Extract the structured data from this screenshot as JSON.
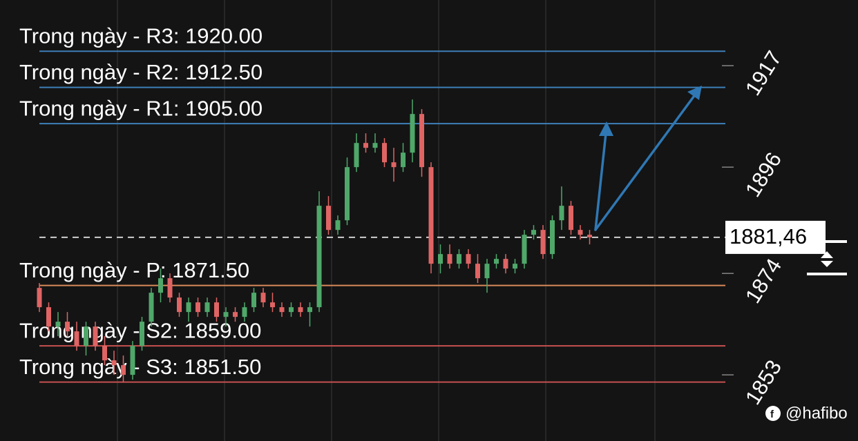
{
  "chart_data": {
    "type": "candlestick",
    "ylim": [
      1839.3,
      1930.6
    ],
    "yticks": [
      1853,
      1874,
      1896,
      1917
    ],
    "up_color": "#4fa86a",
    "down_color": "#e06464",
    "open": [
      1871,
      1867,
      1863,
      1864,
      1862,
      1859,
      1863,
      1859,
      1856,
      1855,
      1853,
      1859,
      1864,
      1870,
      1873,
      1869,
      1866,
      1868,
      1866,
      1868,
      1865,
      1866,
      1865,
      1867,
      1870,
      1868,
      1867,
      1866,
      1867,
      1866,
      1867,
      1888,
      1883,
      1885,
      1896,
      1901,
      1900,
      1901,
      1897,
      1896,
      1899,
      1907,
      1896,
      1876,
      1878,
      1876,
      1878,
      1876,
      1873,
      1876,
      1877,
      1875,
      1876,
      1882,
      1883,
      1878,
      1885,
      1888,
      1883,
      1882
    ],
    "high": [
      1872,
      1868,
      1866,
      1866,
      1864,
      1864,
      1864,
      1861,
      1858,
      1857,
      1860,
      1865,
      1871,
      1875,
      1874,
      1870,
      1869,
      1869,
      1869,
      1869,
      1867,
      1867,
      1868,
      1871,
      1871,
      1870,
      1868,
      1868,
      1868,
      1868,
      1891,
      1890,
      1886,
      1898,
      1903,
      1903,
      1903,
      1902,
      1900,
      1901,
      1910,
      1908,
      1897,
      1880,
      1880,
      1879,
      1879,
      1878,
      1877,
      1878,
      1878,
      1877,
      1883,
      1884,
      1884,
      1886,
      1892,
      1889,
      1884,
      1883
    ],
    "low": [
      1866,
      1862,
      1861,
      1861,
      1858,
      1857,
      1858,
      1855,
      1853,
      1851.5,
      1852,
      1858,
      1863,
      1868,
      1868,
      1865,
      1864,
      1865,
      1865,
      1864,
      1863,
      1864,
      1864,
      1866,
      1867,
      1866,
      1865,
      1865,
      1865,
      1863,
      1866,
      1882,
      1882,
      1884,
      1895,
      1899,
      1899,
      1896,
      1893,
      1895,
      1897,
      1894,
      1874,
      1874,
      1875,
      1875,
      1875,
      1872,
      1870,
      1875,
      1874,
      1874,
      1875,
      1881,
      1877,
      1877,
      1883,
      1882,
      1881,
      1880
    ],
    "close": [
      1867,
      1863,
      1864,
      1862,
      1859,
      1863,
      1859,
      1856,
      1855,
      1853,
      1859,
      1864,
      1870,
      1873,
      1869,
      1866,
      1868,
      1866,
      1868,
      1865,
      1866,
      1865,
      1867,
      1870,
      1868,
      1867,
      1866,
      1867,
      1866,
      1867,
      1888,
      1883,
      1885,
      1896,
      1901,
      1900,
      1901,
      1897,
      1896,
      1899,
      1907,
      1896,
      1876,
      1878,
      1876,
      1878,
      1876,
      1873,
      1876,
      1877,
      1875,
      1876,
      1882,
      1883,
      1878,
      1885,
      1888,
      1883,
      1882,
      1881.46
    ],
    "levels": [
      {
        "label": "Trong ngày - R3: 1920.00",
        "value": 1920,
        "color": "#3d7fb8"
      },
      {
        "label": "Trong ngày - R2: 1912.50",
        "value": 1912.5,
        "color": "#3d7fb8"
      },
      {
        "label": "Trong ngày - R1: 1905.00",
        "value": 1905,
        "color": "#3d7fb8"
      },
      {
        "label": "Trong ngày - P: 1871.50",
        "value": 1871.5,
        "color": "#d9895a"
      },
      {
        "label": "Trong ngày - S2: 1859.00",
        "value": 1859,
        "color": "#c85050"
      },
      {
        "label": "Trong ngày - S3: 1851.50",
        "value": 1851.5,
        "color": "#c85050"
      }
    ],
    "current_price": {
      "value": 1881.46,
      "label": "1881,46"
    },
    "watermark": "@hafibo"
  }
}
